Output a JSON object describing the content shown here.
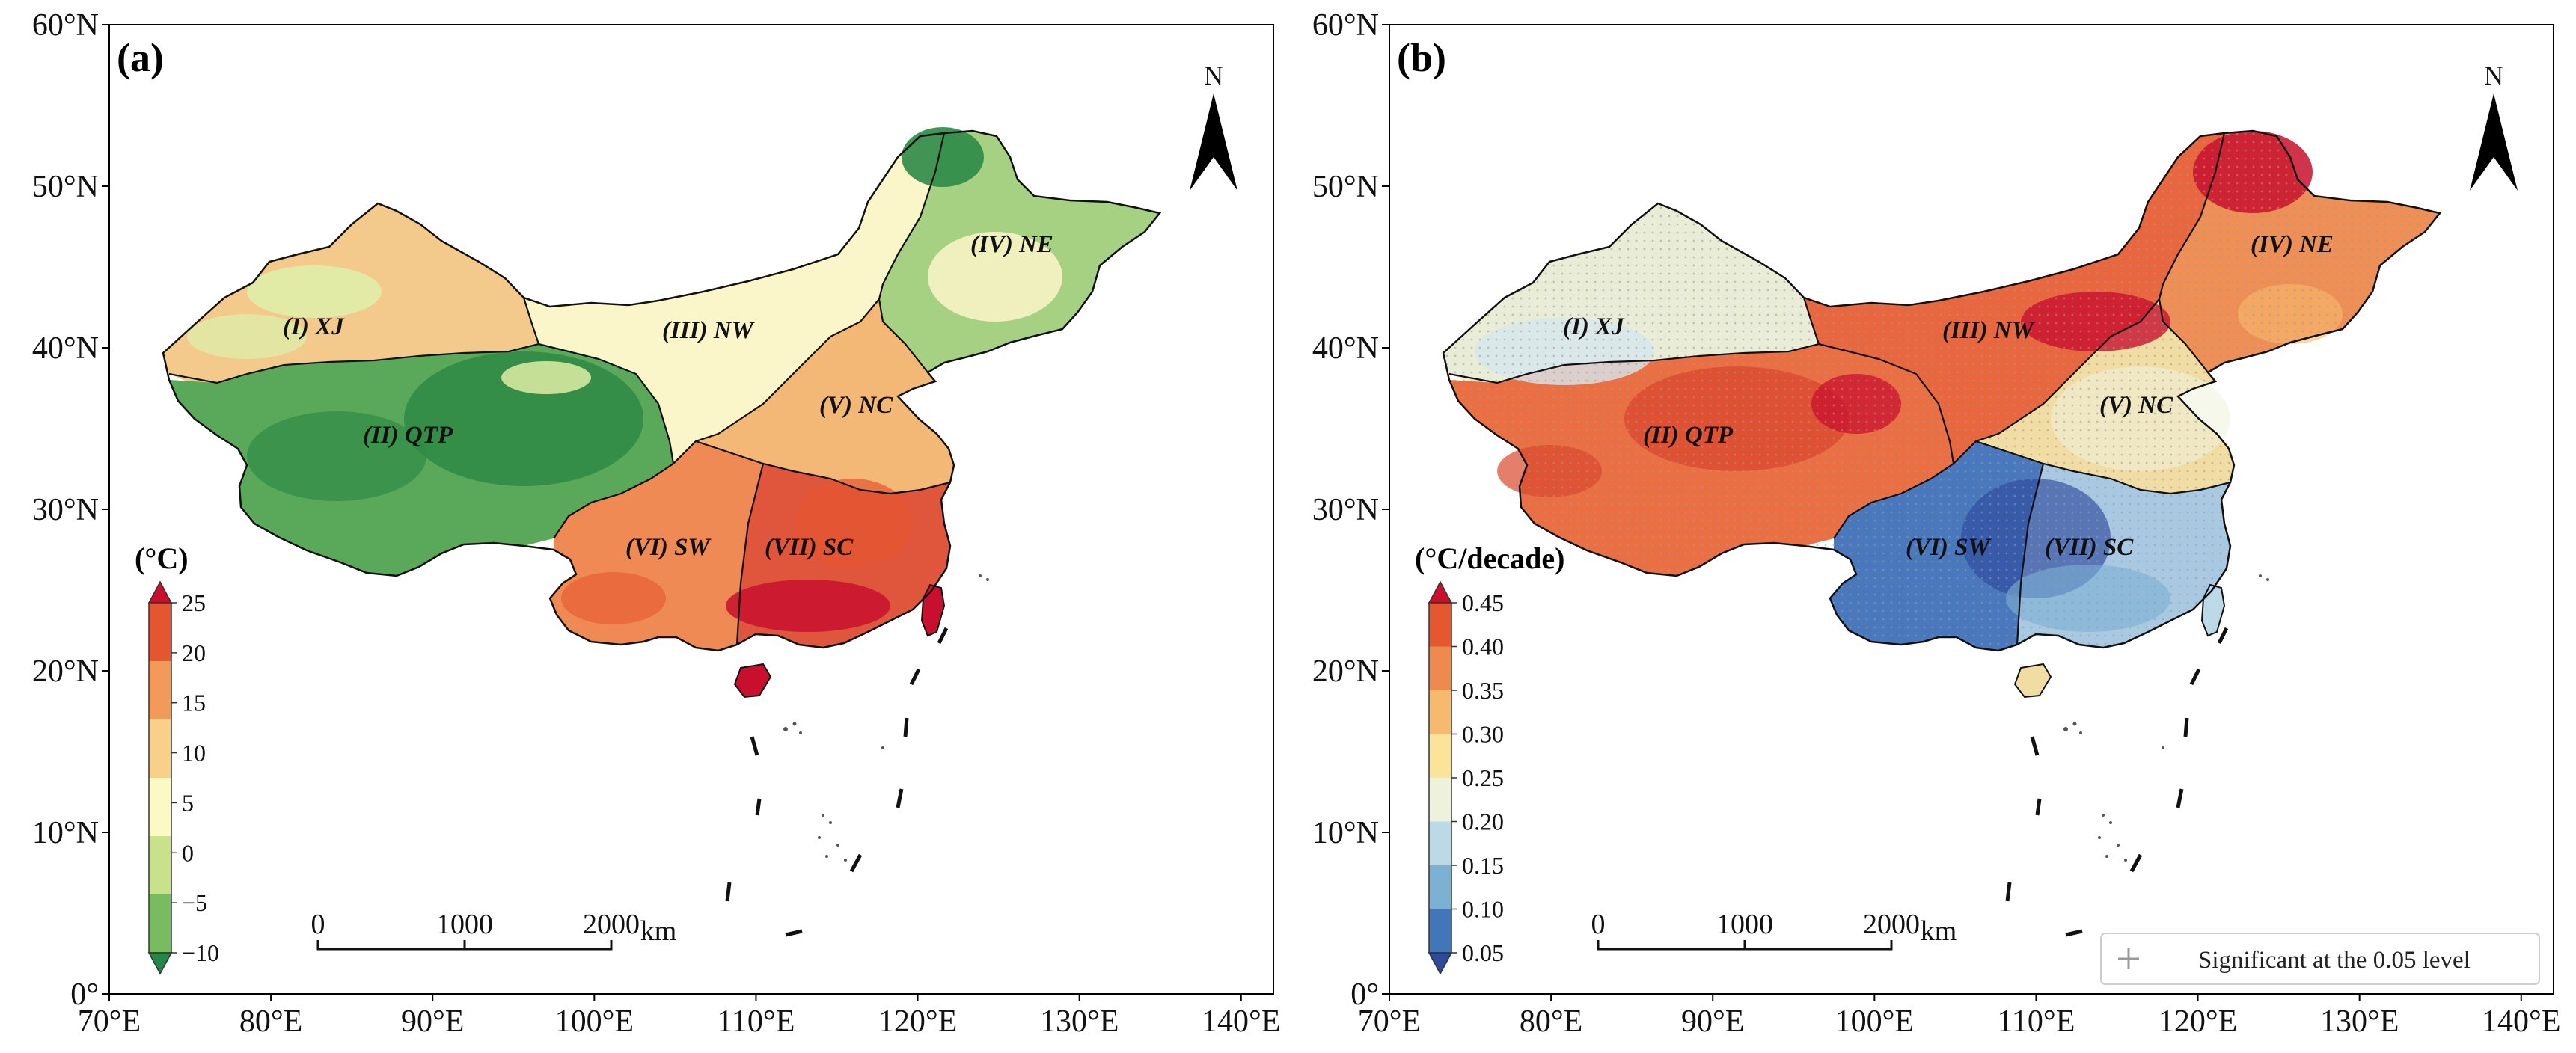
{
  "figure": "China regional temperature maps",
  "panels": [
    {
      "label": "(a)",
      "colorbar": {
        "title": "(°C)",
        "ticks": [
          "25",
          "20",
          "15",
          "10",
          "5",
          "0",
          "−5",
          "−10"
        ],
        "colors": [
          "#c8102e",
          "#e4562f",
          "#f19a5a",
          "#f8d08a",
          "#fdf9c4",
          "#c8e28c",
          "#79bb61",
          "#23874a"
        ]
      },
      "regions": [
        {
          "label": "(I) XJ",
          "color": "#f4c98c"
        },
        {
          "label": "(II) QTP",
          "color": "#5aa95a"
        },
        {
          "label": "(III) NW",
          "color": "#fbf6c9"
        },
        {
          "label": "(IV) NE",
          "color": "#a6d082"
        },
        {
          "label": "(V) NC",
          "color": "#f3b876"
        },
        {
          "label": "(VI) SW",
          "color": "#ef8a55"
        },
        {
          "label": "(VII) SC",
          "color": "#e0563c"
        }
      ]
    },
    {
      "label": "(b)",
      "colorbar": {
        "title": "(°C/decade)",
        "ticks": [
          "0.45",
          "0.40",
          "0.35",
          "0.30",
          "0.25",
          "0.20",
          "0.15",
          "0.10",
          "0.05"
        ],
        "colors": [
          "#c8102e",
          "#e4572f",
          "#ef8a4f",
          "#f6b96e",
          "#fbe49a",
          "#eef2dc",
          "#bcd9e8",
          "#7cb1d4",
          "#4177b8",
          "#2c4a9e"
        ]
      },
      "regions": [
        {
          "label": "(I) XJ",
          "color": "#e9ecd6"
        },
        {
          "label": "(II) QTP",
          "color": "#ea7044"
        },
        {
          "label": "(III) NW",
          "color": "#e8673e"
        },
        {
          "label": "(IV) NE",
          "color": "#ee8f55"
        },
        {
          "label": "(V) NC",
          "color": "#f1dca4"
        },
        {
          "label": "(VI) SW",
          "color": "#4a78bd"
        },
        {
          "label": "(VII) SC",
          "color": "#a9c9e2"
        }
      ],
      "legend": "Significant at the 0.05 level"
    }
  ],
  "axes": {
    "lon_ticks": [
      "70°E",
      "80°E",
      "90°E",
      "100°E",
      "110°E",
      "120°E",
      "130°E",
      "140°E"
    ],
    "lat_ticks": [
      "60°N",
      "50°N",
      "40°N",
      "30°N",
      "20°N",
      "10°N",
      "0°"
    ],
    "lon_range": [
      70,
      142
    ],
    "lat_range": [
      0,
      60
    ]
  },
  "scale_bar": {
    "labels": [
      "0",
      "1000",
      "2000"
    ],
    "unit": "km"
  },
  "north_arrow": {
    "label": "N"
  }
}
